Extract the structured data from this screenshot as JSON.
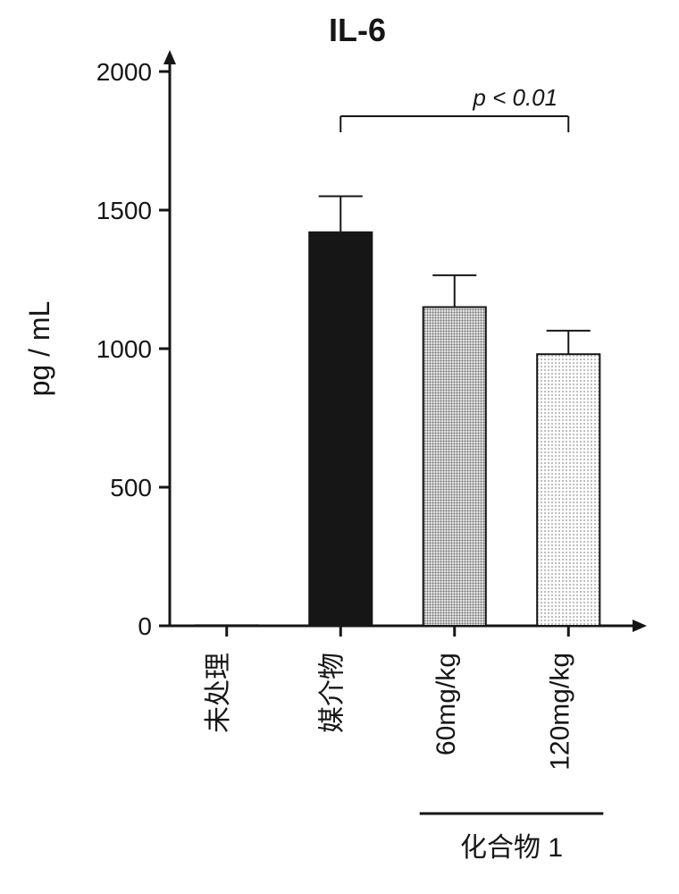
{
  "chart": {
    "type": "bar",
    "title": "IL-6",
    "title_fontsize": 36,
    "ylabel": "pg / mL",
    "ylabel_fontsize": 32,
    "group_label": "化合物 1",
    "p_value_label": "p < 0.01",
    "background_color": "#ffffff",
    "axis_color": "#161616",
    "axis_width": 3,
    "tick_width": 3,
    "tick_length_major": 12,
    "bar_stroke_width": 2,
    "error_bar_width": 2,
    "bracket_width": 2,
    "ylim": [
      0,
      2000
    ],
    "ytick_step": 500,
    "yticks": [
      0,
      500,
      1000,
      1500,
      2000
    ],
    "tick_fontsize": 28,
    "cat_fontsize": 30,
    "group_fontsize": 30,
    "pval_fontsize": 26,
    "categories": [
      "未处理",
      "媒介物",
      "60mg/kg",
      "120mg/kg"
    ],
    "values": [
      2,
      1420,
      1150,
      980
    ],
    "errors": [
      0,
      130,
      115,
      85
    ],
    "bar_fill_kind": [
      "solid",
      "solid",
      "pattern-dense",
      "pattern-sparse"
    ],
    "bar_colors": [
      "#161616",
      "#161616",
      "#7a7a7a",
      "#b9b9b9"
    ],
    "bar_stroke": "#161616",
    "bar_width": 0.55,
    "bracket_from": 1,
    "bracket_to": 3,
    "group_from": 2,
    "group_to": 3,
    "pattern_dense_color": "#7a7a7a",
    "pattern_sparse_color": "#b9b9b9"
  }
}
